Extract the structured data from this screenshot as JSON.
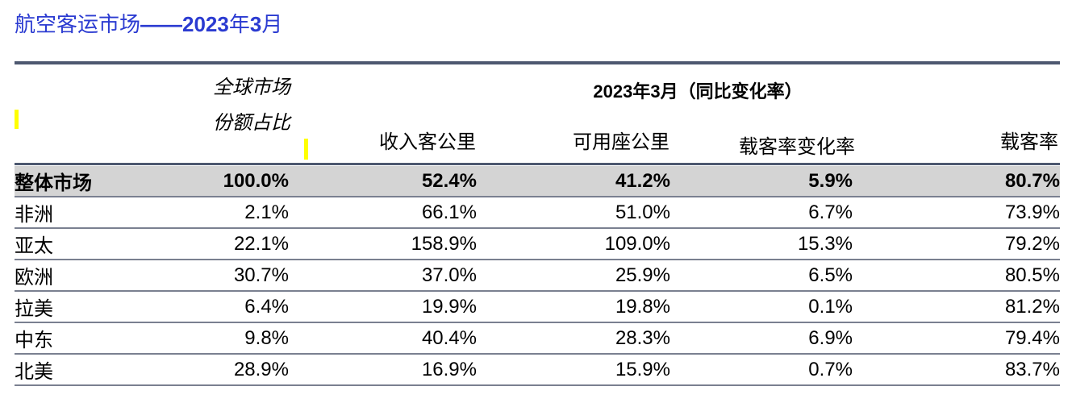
{
  "title": {
    "text": "航空客运市场",
    "dash_year": "——2023",
    "year_char": "年",
    "month_num": "3",
    "month_char": "月"
  },
  "header": {
    "share_line1": "全球市场",
    "share_line2": "份额占比",
    "period_year": "2023",
    "period_year_char": "年",
    "period_month": "3",
    "period_rest": "月（同比变化率）",
    "col_rpk": "收入客公里",
    "col_ask": "可用座公里",
    "col_plf_change": "载客率变化率",
    "col_plf": "载客率"
  },
  "rows": [
    {
      "region": "整体市场",
      "share": "100.0%",
      "rpk": "52.4%",
      "ask": "41.2%",
      "plf_change": "5.9%",
      "plf": "80.7%"
    },
    {
      "region": "非洲",
      "share": "2.1%",
      "rpk": "66.1%",
      "ask": "51.0%",
      "plf_change": "6.7%",
      "plf": "73.9%"
    },
    {
      "region": "亚太",
      "share": "22.1%",
      "rpk": "158.9%",
      "ask": "109.0%",
      "plf_change": "15.3%",
      "plf": "79.2%"
    },
    {
      "region": "欧洲",
      "share": "30.7%",
      "rpk": "37.0%",
      "ask": "25.9%",
      "plf_change": "6.5%",
      "plf": "80.5%"
    },
    {
      "region": "拉美",
      "share": "6.4%",
      "rpk": "19.9%",
      "ask": "19.8%",
      "plf_change": "0.1%",
      "plf": "81.2%"
    },
    {
      "region": "中东",
      "share": "9.8%",
      "rpk": "40.4%",
      "ask": "28.3%",
      "plf_change": "6.9%",
      "plf": "79.4%"
    },
    {
      "region": "北美",
      "share": "28.9%",
      "rpk": "16.9%",
      "ask": "15.9%",
      "plf_change": "0.7%",
      "plf": "83.7%"
    }
  ],
  "colors": {
    "title": "#2b3bd1",
    "rule": "#4d5870",
    "total_row_bg": "#d4d4d4",
    "marker": "#ffff00"
  }
}
